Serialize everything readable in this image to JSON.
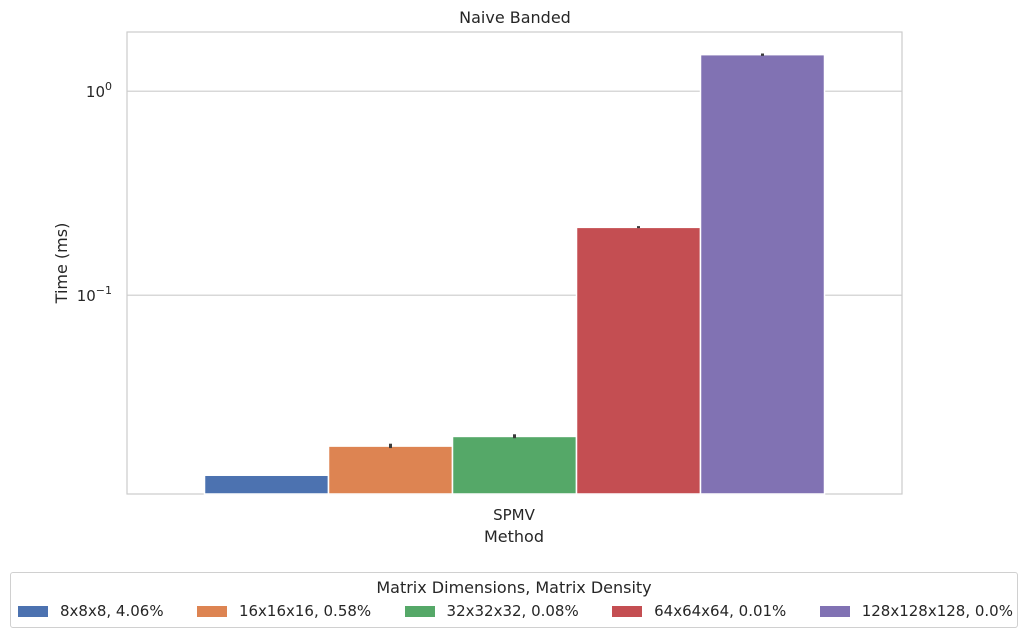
{
  "chart_data": {
    "type": "bar",
    "title": "Naive Banded",
    "xlabel": "Method",
    "ylabel": "Time (ms)",
    "categories": [
      "SPMV"
    ],
    "yscale": "log",
    "ylim": [
      0.0106,
      1.95
    ],
    "yticks": [
      {
        "value": 0.1,
        "base": "10",
        "exp": "−1"
      },
      {
        "value": 1,
        "base": "10",
        "exp": "0"
      }
    ],
    "grid": "y",
    "legend_title": "Matrix Dimensions, Matrix Density",
    "legend_position": "bottom",
    "series": [
      {
        "name": "8x8x8, 4.06%",
        "values": [
          0.0131
        ],
        "err": [
          0,
          0
        ],
        "color": "#4c72b0"
      },
      {
        "name": "16x16x16, 0.58%",
        "values": [
          0.0182
        ],
        "err": [
          0.0178,
          0.0187
        ],
        "color": "#dd8452"
      },
      {
        "name": "32x32x32, 0.08%",
        "values": [
          0.0203
        ],
        "err": [
          0.0199,
          0.0208
        ],
        "color": "#55a868"
      },
      {
        "name": "64x64x64, 0.01%",
        "values": [
          0.215
        ],
        "err": [
          0.213,
          0.218
        ],
        "color": "#c44e52"
      },
      {
        "name": "128x128x128, 0.0%",
        "values": [
          1.51
        ],
        "err": [
          1.49,
          1.53
        ],
        "color": "#8172b3"
      }
    ]
  }
}
